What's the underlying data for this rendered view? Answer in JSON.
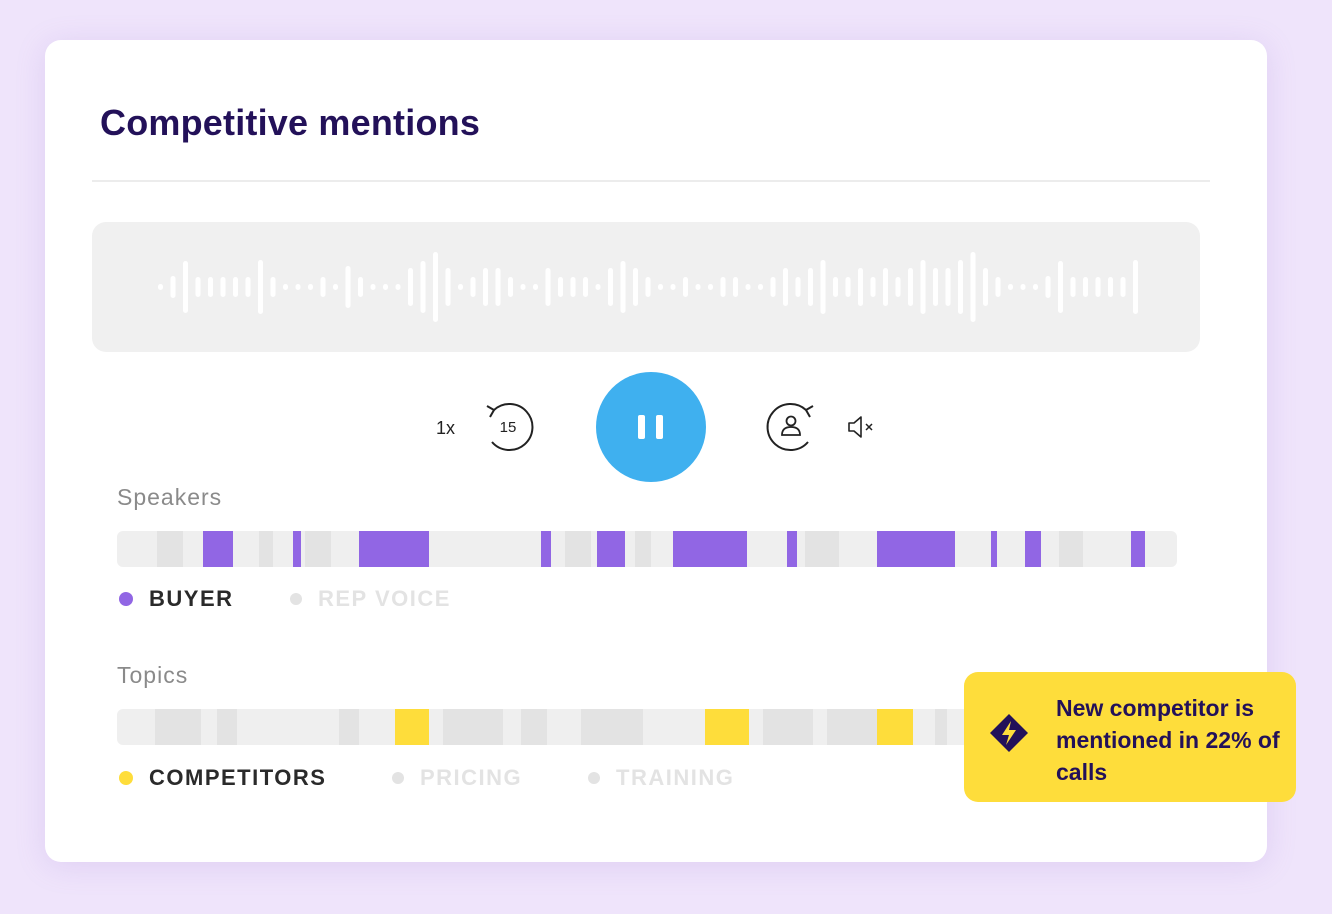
{
  "title": "Competitive mentions",
  "player": {
    "speed_label": "1x",
    "rewind_label": "15",
    "state": "playing"
  },
  "speakers": {
    "label": "Speakers",
    "legend": [
      {
        "label": "BUYER",
        "active": true,
        "color": "#9166e4"
      },
      {
        "label": "REP VOICE",
        "active": false,
        "color": "#e3e3e3"
      }
    ]
  },
  "topics": {
    "label": "Topics",
    "legend": [
      {
        "label": "COMPETITORS",
        "active": true,
        "color": "#fedd3b"
      },
      {
        "label": "PRICING",
        "active": false,
        "color": "#e3e3e3"
      },
      {
        "label": "TRAINING",
        "active": false,
        "color": "#e3e3e3"
      }
    ]
  },
  "callout": {
    "text": "New competitor is mentioned in 22% of calls"
  },
  "colors": {
    "accent_blue": "#3fb0ef",
    "buyer_purple": "#9166e4",
    "competitor_yellow": "#fedd3b",
    "title_navy": "#231159"
  }
}
